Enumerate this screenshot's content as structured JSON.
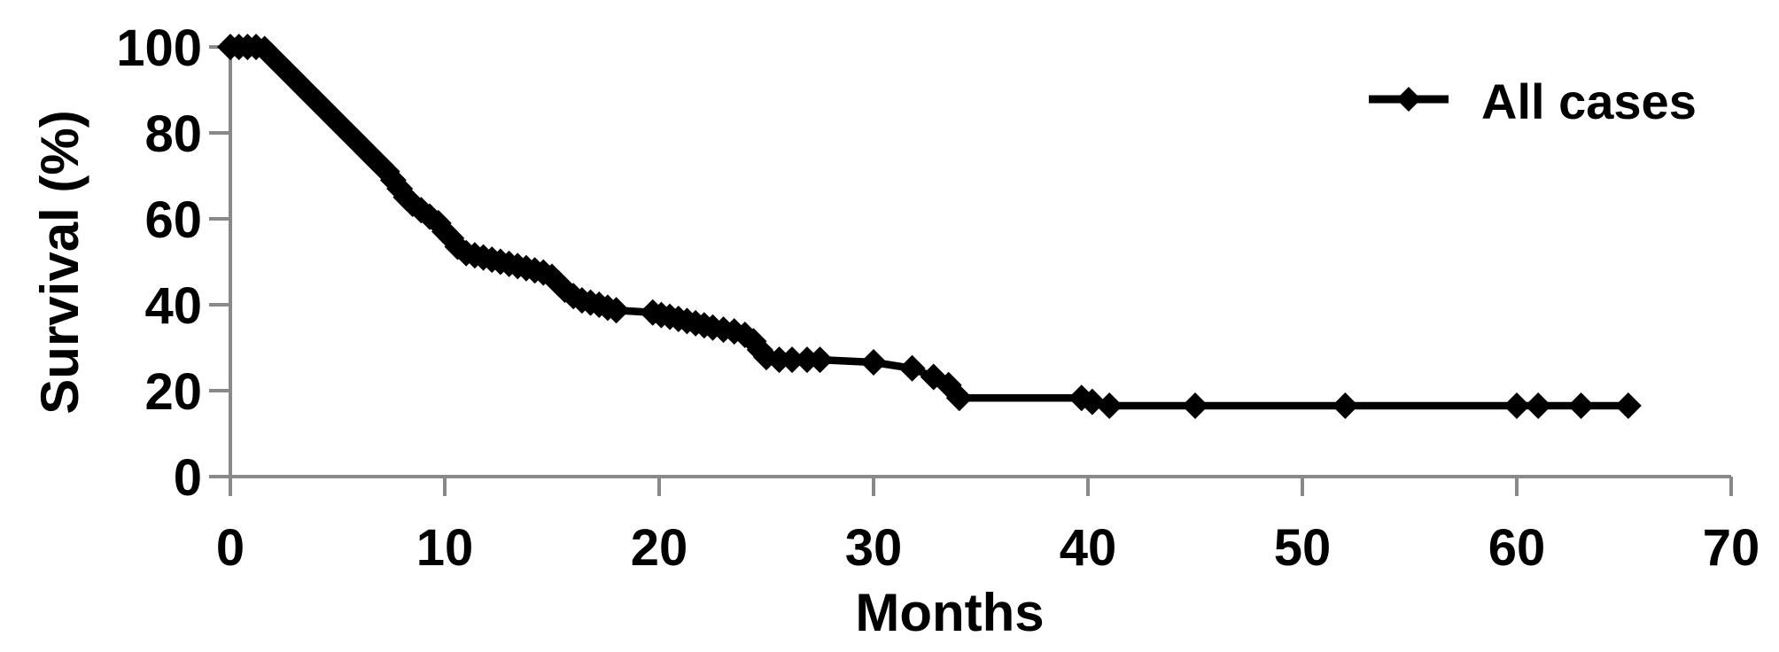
{
  "figure": {
    "background": "#ffffff"
  },
  "chart_data": {
    "type": "line",
    "title": "",
    "xlabel": "Months",
    "ylabel": "Survival (%)",
    "xlim": [
      0,
      70
    ],
    "ylim": [
      0,
      100
    ],
    "x_ticks": [
      0,
      10,
      20,
      30,
      40,
      50,
      60,
      70
    ],
    "y_ticks": [
      0,
      20,
      40,
      60,
      80,
      100
    ],
    "grid": false,
    "legend_position": "top-right",
    "axis_color": "#898989",
    "line_color": "#000000",
    "marker": "diamond",
    "series": [
      {
        "name": "All cases",
        "color": "#000000",
        "points": [
          [
            0,
            100
          ],
          [
            0.4,
            100
          ],
          [
            0.8,
            100
          ],
          [
            1.2,
            100
          ],
          [
            1.6,
            99.5
          ],
          [
            1.9,
            98
          ],
          [
            2.2,
            96.5
          ],
          [
            2.5,
            95
          ],
          [
            2.8,
            93.5
          ],
          [
            3.1,
            92
          ],
          [
            3.4,
            90.5
          ],
          [
            3.7,
            89
          ],
          [
            4,
            87.5
          ],
          [
            4.3,
            86
          ],
          [
            4.6,
            84.5
          ],
          [
            4.9,
            83
          ],
          [
            5.2,
            81.5
          ],
          [
            5.5,
            80
          ],
          [
            5.8,
            78.5
          ],
          [
            6.1,
            77
          ],
          [
            6.4,
            75.5
          ],
          [
            6.7,
            74
          ],
          [
            7,
            72.5
          ],
          [
            7.3,
            71
          ],
          [
            7.6,
            69
          ],
          [
            7.9,
            67
          ],
          [
            8.2,
            65
          ],
          [
            8.5,
            63.5
          ],
          [
            8.9,
            62
          ],
          [
            9.3,
            60.5
          ],
          [
            9.7,
            59
          ],
          [
            10,
            57
          ],
          [
            10.3,
            55.5
          ],
          [
            10.6,
            53.5
          ],
          [
            11,
            52
          ],
          [
            11.4,
            51.5
          ],
          [
            11.8,
            51
          ],
          [
            12.2,
            50.5
          ],
          [
            12.6,
            50
          ],
          [
            13,
            49.5
          ],
          [
            13.4,
            49
          ],
          [
            13.8,
            48.5
          ],
          [
            14.2,
            48
          ],
          [
            14.6,
            47.5
          ],
          [
            15,
            46.5
          ],
          [
            15.3,
            45
          ],
          [
            15.6,
            43.5
          ],
          [
            16,
            42
          ],
          [
            16.4,
            41
          ],
          [
            16.8,
            40.5
          ],
          [
            17.2,
            40
          ],
          [
            17.6,
            39.3
          ],
          [
            18,
            38.7
          ],
          [
            19.7,
            38.2
          ],
          [
            20.1,
            37.6
          ],
          [
            20.5,
            37.2
          ],
          [
            20.9,
            36.7
          ],
          [
            21.3,
            36.2
          ],
          [
            21.7,
            35.7
          ],
          [
            22.1,
            35.2
          ],
          [
            22.5,
            34.7
          ],
          [
            23,
            34.2
          ],
          [
            23.5,
            33.8
          ],
          [
            24,
            33
          ],
          [
            24.4,
            31.5
          ],
          [
            24.7,
            29.5
          ],
          [
            25,
            27.8
          ],
          [
            25.6,
            27.2
          ],
          [
            26.2,
            27.2
          ],
          [
            26.9,
            27.2
          ],
          [
            27.5,
            27.2
          ],
          [
            30,
            26.6
          ],
          [
            31.8,
            25.2
          ],
          [
            32.8,
            23.2
          ],
          [
            33.5,
            21.3
          ],
          [
            34,
            18.3
          ],
          [
            39.7,
            18.3
          ],
          [
            40.2,
            17.4
          ],
          [
            41,
            16.5
          ],
          [
            45,
            16.5
          ],
          [
            52,
            16.5
          ],
          [
            60,
            16.5
          ],
          [
            61,
            16.5
          ],
          [
            63,
            16.5
          ],
          [
            65.2,
            16.5
          ]
        ]
      }
    ]
  }
}
